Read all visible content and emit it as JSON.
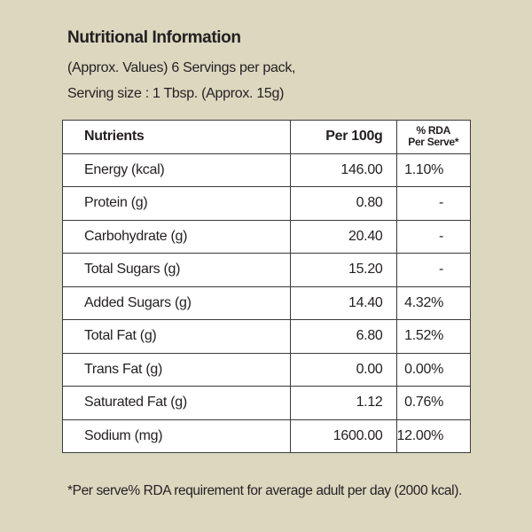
{
  "header": {
    "title": "Nutritional Information",
    "line1": "(Approx. Values) 6 Servings per pack,",
    "line2": "Serving size : 1 Tbsp. (Approx. 15g)"
  },
  "table": {
    "columns": [
      "Nutrients",
      "Per 100g",
      "% RDA",
      "Per Serve*"
    ],
    "rows": [
      {
        "nutrient": "Energy (kcal)",
        "per100g": "146.00",
        "rda": "1.10%"
      },
      {
        "nutrient": "Protein (g)",
        "per100g": "0.80",
        "rda": "-"
      },
      {
        "nutrient": "Carbohydrate (g)",
        "per100g": "20.40",
        "rda": "-"
      },
      {
        "nutrient": "Total Sugars (g)",
        "per100g": "15.20",
        "rda": "-"
      },
      {
        "nutrient": "Added Sugars (g)",
        "per100g": "14.40",
        "rda": "4.32%"
      },
      {
        "nutrient": "Total Fat (g)",
        "per100g": "6.80",
        "rda": "1.52%"
      },
      {
        "nutrient": "Trans Fat (g)",
        "per100g": "0.00",
        "rda": "0.00%"
      },
      {
        "nutrient": "Saturated Fat (g)",
        "per100g": "1.12",
        "rda": "0.76%"
      },
      {
        "nutrient": "Sodium (mg)",
        "per100g": "1600.00",
        "rda": "12.00%"
      }
    ]
  },
  "footnote": "*Per serve% RDA requirement for average adult per day (2000 kcal).",
  "colors": {
    "background": "#dcd8c0",
    "table_bg": "#ffffff",
    "text": "#231f20"
  }
}
